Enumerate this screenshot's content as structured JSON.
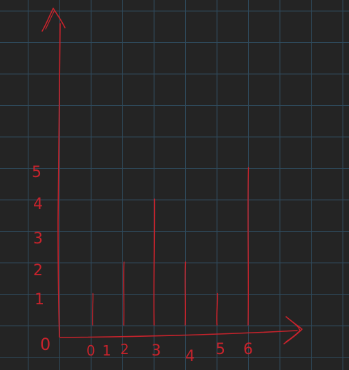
{
  "canvas": {
    "background": "#242424",
    "grid_color": "#2f4a5c",
    "ink_color": "#c8232c"
  },
  "axis_labels": {
    "origin": "0",
    "y_ticks": [
      "1",
      "2",
      "3",
      "4",
      "5"
    ],
    "x_ticks": [
      "0",
      "1",
      "2",
      "3",
      "4",
      "5",
      "6"
    ]
  },
  "bars": [
    {
      "x": 1,
      "height": 1
    },
    {
      "x": 2,
      "height": 2
    },
    {
      "x": 3,
      "height": 4
    },
    {
      "x": 4,
      "height": 2
    },
    {
      "x": 5,
      "height": 1
    },
    {
      "x": 6,
      "height": 5
    }
  ]
}
